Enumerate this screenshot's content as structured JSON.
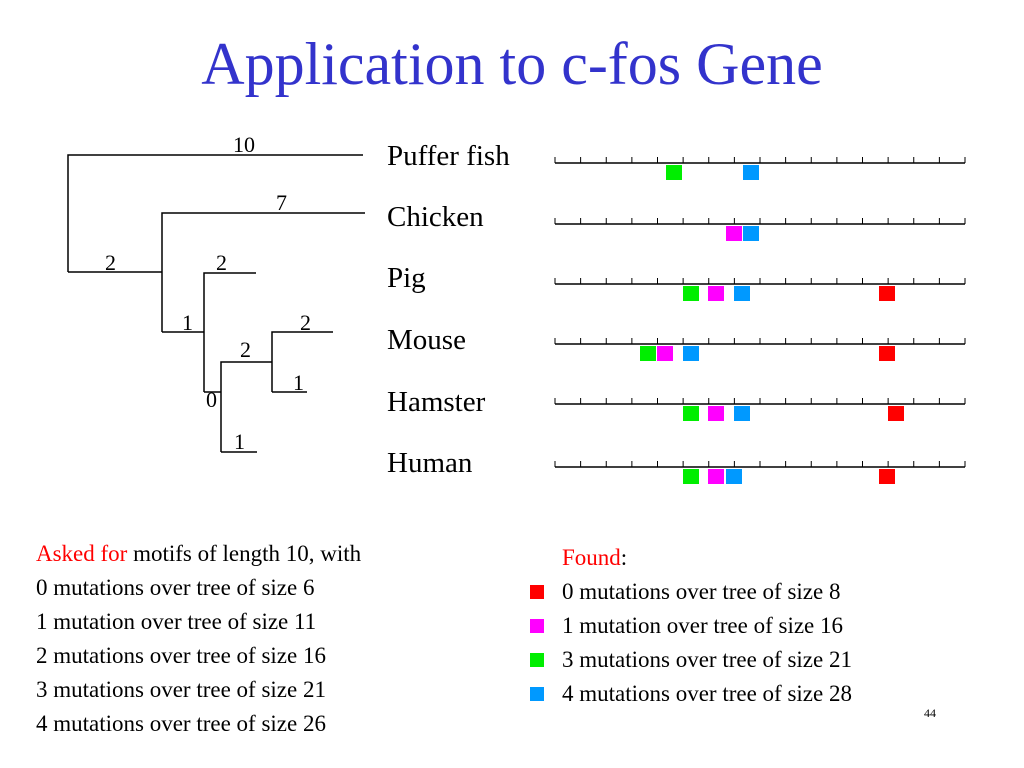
{
  "title": "Application to c-fos Gene",
  "tree": {
    "branch_labels": [
      "10",
      "7",
      "2",
      "2",
      "1",
      "2",
      "2",
      "1",
      "0",
      "1"
    ]
  },
  "species": [
    "Puffer fish",
    "Chicken",
    "Pig",
    "Mouse",
    "Hamster",
    "Human"
  ],
  "colors": {
    "title": "#3333cc",
    "motif_0_mutations": "#ff0000",
    "motif_1_mutation": "#ff00ff",
    "motif_3_mutations": "#00ee00",
    "motif_4_mutations": "#0099ff"
  },
  "asked": {
    "prefix": "Asked for",
    "rest": " motifs of length 10, with",
    "lines": [
      "0 mutations over tree of size 6",
      "1 mutation over tree of size 11",
      "2 mutations over tree of size 16",
      "3 mutations over tree of size 21",
      "4 mutations over tree of size 26"
    ]
  },
  "found": {
    "label": "Found",
    "colon": ":",
    "items": [
      {
        "text": "0 mutations over tree of size 8",
        "color": "#ff0000"
      },
      {
        "text": "1 mutation over tree of size 16",
        "color": "#ff00ff"
      },
      {
        "text": "3 mutations over tree of size 21",
        "color": "#00ee00"
      },
      {
        "text": "4 mutations over tree of size 28",
        "color": "#0099ff"
      }
    ]
  },
  "page_number": "44"
}
